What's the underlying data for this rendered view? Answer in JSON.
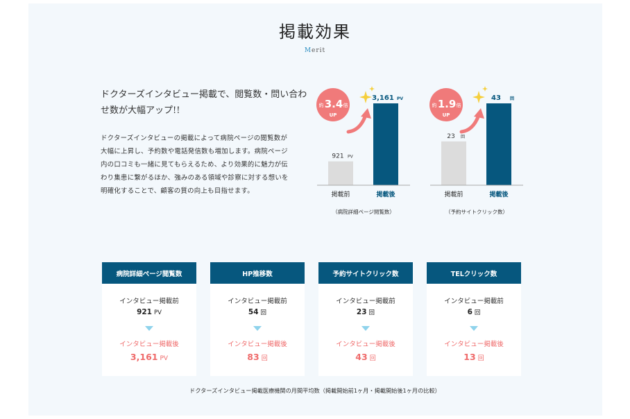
{
  "header": {
    "title": "掲載効果",
    "subtitle_first": "M",
    "subtitle_rest": "erit"
  },
  "intro": {
    "headline": "ドクターズインタビュー掲載で、閲覧数・問い合わせ数が大幅アップ!!",
    "body": "ドクターズインタビューの掲載によって病院ページの閲覧数が大幅に上昇し、予約数や電話発信数も増加します。病院ページ内の口コミも一緒に見てもらえるため、より効果的に魅力が伝わり集患に繋がるほか、強みのある領域や診察に対する想いを明確化することで、顧客の質の向上も目指せます。"
  },
  "chart_data": [
    {
      "type": "bar",
      "categories": [
        "掲載前",
        "掲載後"
      ],
      "values": [
        921,
        3161
      ],
      "unit": "PV",
      "value_labels": [
        "921",
        "3,161"
      ],
      "caption": "（病院詳細ページ閲覧数）",
      "badge": {
        "prefix": "約",
        "value": "3.4",
        "suffix": "倍",
        "sub": "UP"
      },
      "colors": [
        "#dcdcdc",
        "#06577e"
      ]
    },
    {
      "type": "bar",
      "categories": [
        "掲載前",
        "掲載後"
      ],
      "values": [
        23,
        43
      ],
      "unit": "回",
      "value_labels": [
        "23",
        "43"
      ],
      "caption": "（予約サイトクリック数）",
      "badge": {
        "prefix": "約",
        "value": "1.9",
        "suffix": "倍",
        "sub": "UP"
      },
      "colors": [
        "#dcdcdc",
        "#06577e"
      ]
    }
  ],
  "cards": [
    {
      "title": "病院詳細ページ閲覧数",
      "before_label": "インタビュー掲載前",
      "before_value": "921",
      "before_unit": "PV",
      "after_label": "インタビュー掲載後",
      "after_value": "3,161",
      "after_unit": "PV"
    },
    {
      "title": "HP推移数",
      "before_label": "インタビュー掲載前",
      "before_value": "54",
      "before_unit": "回",
      "after_label": "インタビュー掲載後",
      "after_value": "83",
      "after_unit": "回"
    },
    {
      "title": "予約サイトクリック数",
      "before_label": "インタビュー掲載前",
      "before_value": "23",
      "before_unit": "回",
      "after_label": "インタビュー掲載後",
      "after_value": "43",
      "after_unit": "回"
    },
    {
      "title": "TELクリック数",
      "before_label": "インタビュー掲載前",
      "before_value": "6",
      "before_unit": "回",
      "after_label": "インタビュー掲載後",
      "after_value": "13",
      "after_unit": "回"
    }
  ],
  "footnote": "ドクターズインタビュー掲載医療機関の月間平均数（掲載開始前1ヶ月・掲載開始後1ヶ月の比較）",
  "colors": {
    "accent_navy": "#06577e",
    "accent_red": "#ef6b6b",
    "badge": "#f07a7a",
    "sparkle": "#f5cf3c"
  }
}
